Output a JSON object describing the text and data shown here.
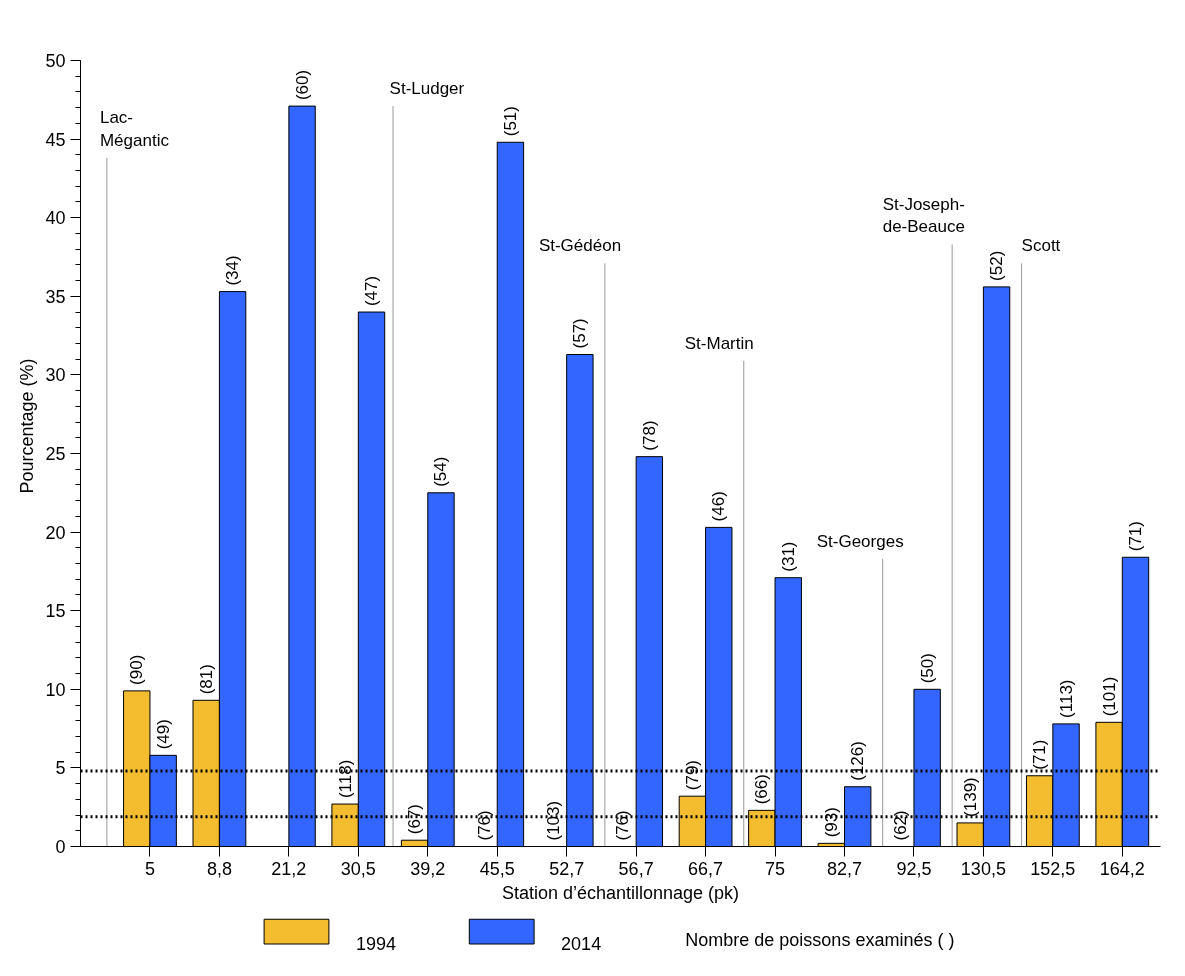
{
  "chart_data": {
    "type": "bar",
    "xlabel": "Station d’échantillonnage (pk)",
    "ylabel": "Pourcentage (%)",
    "categories": [
      "5",
      "8,8",
      "21,2",
      "30,5",
      "39,2",
      "45,5",
      "52,7",
      "56,7",
      "66,7",
      "75",
      "82,7",
      "92,5",
      "130,5",
      "152,5",
      "164,2"
    ],
    "series": [
      {
        "name": "1994",
        "color": "#f4bd2f",
        "values": [
          9.9,
          9.3,
          null,
          2.7,
          0.4,
          0,
          0,
          0,
          3.2,
          2.3,
          0.2,
          0,
          1.5,
          4.5,
          7.9
        ]
      },
      {
        "name": "2014",
        "color": "#3366ff",
        "values": [
          5.8,
          35.3,
          47.1,
          34.0,
          22.5,
          44.8,
          31.3,
          24.8,
          20.3,
          17.1,
          3.8,
          10.0,
          35.6,
          7.8,
          18.4
        ]
      }
    ],
    "ylim": [
      0,
      50
    ],
    "yticks": [
      0,
      5,
      10,
      15,
      20,
      25,
      30,
      35,
      40,
      45,
      50
    ],
    "ref_lines": [
      {
        "axis": "y",
        "value": 4.8,
        "label": null,
        "color": "#000000",
        "line_style": "dotted"
      },
      {
        "axis": "y",
        "value": 1.9,
        "label": null,
        "color": "#000000",
        "line_style": "dotted"
      }
    ],
    "annotations": [
      {
        "text": "(90)",
        "x": "5",
        "y": 9.9
      },
      {
        "text": "(49)",
        "x": "5",
        "y": 5.8
      },
      {
        "text": "(81)",
        "x": "8,8",
        "y": 9.3
      },
      {
        "text": "(34)",
        "x": "8,8",
        "y": 35.3
      },
      {
        "text": "(60)",
        "x": "21,2",
        "y": 47.1
      },
      {
        "text": "(118)",
        "x": "30,5",
        "y": 2.7
      },
      {
        "text": "(47)",
        "x": "30,5",
        "y": 34.0
      },
      {
        "text": "(67)",
        "x": "39,2",
        "y": 0.4
      },
      {
        "text": "(54)",
        "x": "39,2",
        "y": 22.5
      },
      {
        "text": "(76)",
        "x": "45,5",
        "y": 0
      },
      {
        "text": "(51)",
        "x": "45,5",
        "y": 44.8
      },
      {
        "text": "(103)",
        "x": "52,7",
        "y": 0
      },
      {
        "text": "(57)",
        "x": "52,7",
        "y": 31.3
      },
      {
        "text": "(76)",
        "x": "56,7",
        "y": 0
      },
      {
        "text": "(78)",
        "x": "56,7",
        "y": 24.8
      },
      {
        "text": "(79)",
        "x": "66,7",
        "y": 3.2
      },
      {
        "text": "(46)",
        "x": "66,7",
        "y": 20.3
      },
      {
        "text": "(66)",
        "x": "75",
        "y": 2.3
      },
      {
        "text": "(31)",
        "x": "75",
        "y": 17.1
      },
      {
        "text": "(93)",
        "x": "82,7",
        "y": 0.2
      },
      {
        "text": "(126)",
        "x": "82,7",
        "y": 3.8
      },
      {
        "text": "(62)",
        "x": "92,5",
        "y": 0
      },
      {
        "text": "(50)",
        "x": "92,5",
        "y": 10.0
      },
      {
        "text": "(139)",
        "x": "130,5",
        "y": 1.5
      },
      {
        "text": "(52)",
        "x": "130,5",
        "y": 35.6
      },
      {
        "text": "(71)",
        "x": "152,5",
        "y": 4.5
      },
      {
        "text": "(113)",
        "x": "152,5",
        "y": 7.8
      },
      {
        "text": "(101)",
        "x": "164,2",
        "y": 7.9
      },
      {
        "text": "(71)",
        "x": "164,2",
        "y": 18.4
      },
      "Lac-\nMégantic",
      "St-Ludger",
      "St-Gédéon",
      "St-Martin",
      "St-Georges",
      "St-Joseph-\nde-Beauce",
      "Scott",
      "Nombre de poissons examinés ( )"
    ],
    "grid": false,
    "legend": "bottom"
  }
}
